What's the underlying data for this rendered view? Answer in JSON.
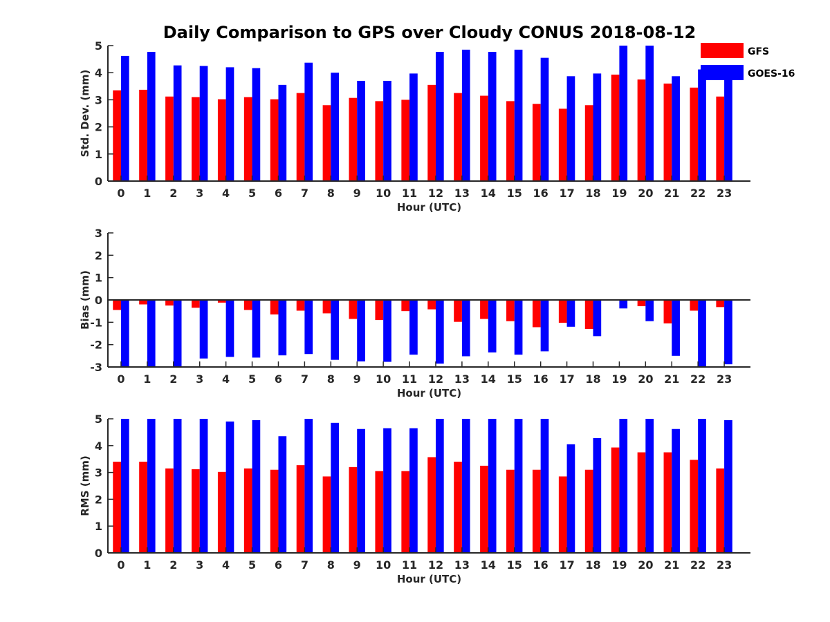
{
  "chart_data": {
    "title": "Daily Comparison to GPS over Cloudy CONUS 2018-08-12",
    "legend": {
      "placement": "top-right, outside",
      "entries": [
        {
          "name": "GFS",
          "color": "#ff0000"
        },
        {
          "name": "GOES-16",
          "color": "#0000ff"
        }
      ]
    },
    "panels": [
      {
        "type": "bar",
        "xlabel": "Hour (UTC)",
        "ylabel": "Std. Dev. (mm)",
        "ylim": [
          0,
          5
        ],
        "yticks": [
          0,
          1,
          2,
          3,
          4,
          5
        ],
        "categories": [
          "0",
          "1",
          "2",
          "3",
          "4",
          "5",
          "6",
          "7",
          "8",
          "9",
          "10",
          "11",
          "12",
          "13",
          "14",
          "15",
          "16",
          "17",
          "18",
          "19",
          "20",
          "21",
          "22",
          "23"
        ],
        "series": [
          {
            "name": "GFS",
            "color": "#ff0000",
            "values": [
              3.35,
              3.37,
              3.12,
              3.1,
              3.02,
              3.1,
              3.02,
              3.25,
              2.8,
              3.07,
              2.95,
              3.0,
              3.55,
              3.25,
              3.15,
              2.95,
              2.85,
              2.67,
              2.8,
              3.93,
              3.75,
              3.6,
              3.45,
              3.12
            ]
          },
          {
            "name": "GOES-16",
            "color": "#0000ff",
            "values": [
              4.62,
              4.77,
              4.27,
              4.25,
              4.2,
              4.17,
              3.55,
              4.37,
              4.0,
              3.7,
              3.7,
              3.97,
              4.77,
              4.85,
              4.77,
              4.85,
              4.55,
              3.87,
              3.97,
              5.0,
              5.0,
              3.87,
              4.12,
              3.85
            ]
          }
        ]
      },
      {
        "type": "bar",
        "xlabel": "Hour (UTC)",
        "ylabel": "Bias (mm)",
        "ylim": [
          -3,
          3
        ],
        "yticks": [
          -3,
          -2,
          -1,
          0,
          1,
          2,
          3
        ],
        "zero_line": true,
        "categories": [
          "0",
          "1",
          "2",
          "3",
          "4",
          "5",
          "6",
          "7",
          "8",
          "9",
          "10",
          "11",
          "12",
          "13",
          "14",
          "15",
          "16",
          "17",
          "18",
          "19",
          "20",
          "21",
          "22",
          "23"
        ],
        "series": [
          {
            "name": "GFS",
            "color": "#ff0000",
            "values": [
              -0.45,
              -0.2,
              -0.25,
              -0.35,
              -0.12,
              -0.45,
              -0.65,
              -0.48,
              -0.6,
              -0.85,
              -0.9,
              -0.5,
              -0.42,
              -0.98,
              -0.85,
              -0.95,
              -1.22,
              -1.02,
              -1.3,
              -0.02,
              -0.28,
              -1.05,
              -0.48,
              -0.32
            ]
          },
          {
            "name": "GOES-16",
            "color": "#0000ff",
            "values": [
              -3.0,
              -3.0,
              -3.0,
              -2.62,
              -2.55,
              -2.58,
              -2.48,
              -2.42,
              -2.68,
              -2.75,
              -2.77,
              -2.45,
              -2.85,
              -2.52,
              -2.35,
              -2.45,
              -2.3,
              -1.2,
              -1.62,
              -0.38,
              -0.95,
              -2.5,
              -3.0,
              -2.88
            ]
          }
        ]
      },
      {
        "type": "bar",
        "xlabel": "Hour (UTC)",
        "ylabel": "RMS (mm)",
        "ylim": [
          0,
          5
        ],
        "yticks": [
          0,
          1,
          2,
          3,
          4,
          5
        ],
        "categories": [
          "0",
          "1",
          "2",
          "3",
          "4",
          "5",
          "6",
          "7",
          "8",
          "9",
          "10",
          "11",
          "12",
          "13",
          "14",
          "15",
          "16",
          "17",
          "18",
          "19",
          "20",
          "21",
          "22",
          "23"
        ],
        "series": [
          {
            "name": "GFS",
            "color": "#ff0000",
            "values": [
              3.4,
              3.4,
              3.15,
              3.12,
              3.02,
              3.15,
              3.1,
              3.27,
              2.85,
              3.2,
              3.05,
              3.05,
              3.57,
              3.4,
              3.25,
              3.1,
              3.1,
              2.85,
              3.1,
              3.93,
              3.75,
              3.75,
              3.47,
              3.15
            ]
          },
          {
            "name": "GOES-16",
            "color": "#0000ff",
            "values": [
              5.0,
              5.0,
              5.0,
              5.0,
              4.9,
              4.95,
              4.35,
              5.0,
              4.85,
              4.62,
              4.65,
              4.65,
              5.0,
              5.0,
              5.0,
              5.0,
              5.0,
              4.05,
              4.28,
              5.0,
              5.0,
              4.62,
              5.0,
              4.95
            ]
          }
        ]
      }
    ]
  }
}
